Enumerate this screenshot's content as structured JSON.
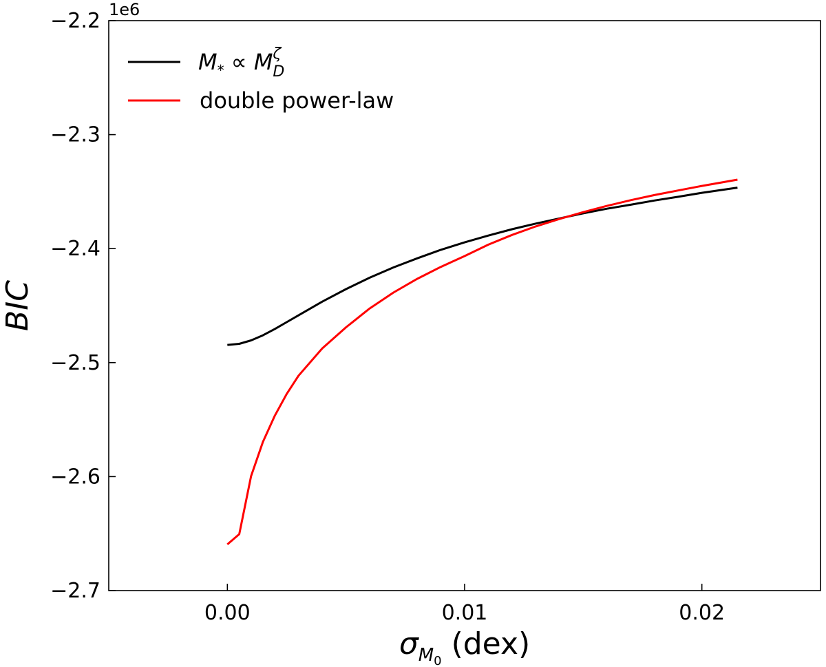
{
  "chart_data": {
    "type": "line",
    "xlabel": "σ_{M_0} (dex)",
    "xlabel_parts": {
      "symbol": "σ",
      "sub": "M",
      "subsub": "0",
      "rest": " (dex)"
    },
    "ylabel": "BIC",
    "offset_text": "1e6",
    "xlim": [
      -0.005,
      0.025
    ],
    "ylim": [
      -2.7,
      -2.2
    ],
    "xticks": [
      0.0,
      0.01,
      0.02
    ],
    "xtick_labels": [
      "0.00",
      "0.01",
      "0.02"
    ],
    "yticks": [
      -2.7,
      -2.6,
      -2.5,
      -2.4,
      -2.3,
      -2.2
    ],
    "ytick_labels": [
      "−2.7",
      "−2.6",
      "−2.5",
      "−2.4",
      "−2.3",
      "−2.2"
    ],
    "grid": false,
    "legend_position": "upper-left",
    "x": [
      0.0,
      0.0005,
      0.001,
      0.0015,
      0.002,
      0.0025,
      0.003,
      0.004,
      0.005,
      0.006,
      0.007,
      0.008,
      0.009,
      0.01,
      0.011,
      0.012,
      0.013,
      0.014,
      0.015,
      0.016,
      0.017,
      0.018,
      0.019,
      0.02,
      0.0215
    ],
    "series": [
      {
        "name": "Ṁ* ∝ M_D^ζ",
        "legend_parts": {
          "m": "M",
          "sub1": "*",
          "rel": " ∝ ",
          "m2": "M",
          "sub2": "D",
          "sup2": "ζ"
        },
        "color": "#000000",
        "values": [
          -2.4845,
          -2.4835,
          -2.4805,
          -2.476,
          -2.4705,
          -2.4645,
          -2.4585,
          -2.4465,
          -2.4355,
          -2.4255,
          -2.4165,
          -2.4085,
          -2.401,
          -2.3945,
          -2.3885,
          -2.383,
          -2.378,
          -2.3735,
          -2.369,
          -2.365,
          -2.3615,
          -2.3578,
          -2.3545,
          -2.351,
          -2.3465
        ]
      },
      {
        "name": "double power-law",
        "color": "#ff0000",
        "values": [
          -2.6595,
          -2.6505,
          -2.5995,
          -2.5695,
          -2.5465,
          -2.5275,
          -2.5115,
          -2.4875,
          -2.469,
          -2.4525,
          -2.4385,
          -2.4265,
          -2.416,
          -2.4065,
          -2.3965,
          -2.388,
          -2.3805,
          -2.374,
          -2.368,
          -2.3625,
          -2.3575,
          -2.353,
          -2.349,
          -2.345,
          -2.3395
        ]
      }
    ]
  }
}
